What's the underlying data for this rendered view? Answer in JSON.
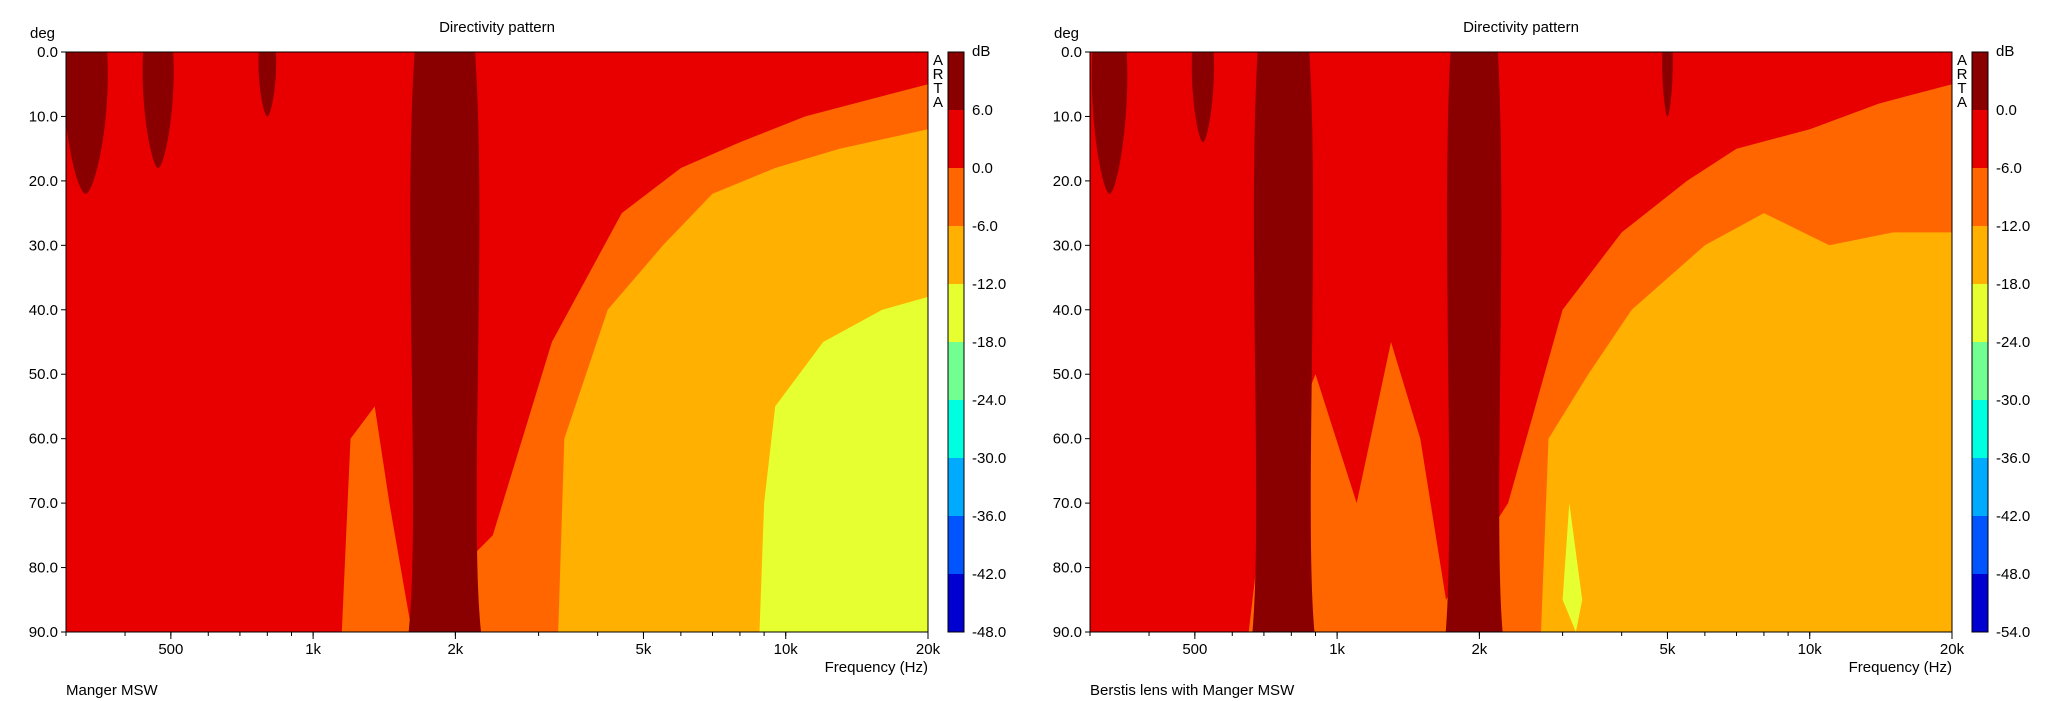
{
  "chart_data": [
    {
      "type": "heatmap",
      "title": "Directivity pattern",
      "ylabel": "deg",
      "xlabel": "Frequency (Hz)",
      "caption": "Manger MSW",
      "watermark": "ARTA",
      "colorbar_unit": "dB",
      "x_scale": "log",
      "xlim": [
        300,
        20000
      ],
      "ylim": [
        0,
        90
      ],
      "y_ticks": [
        "0.0",
        "10.0",
        "20.0",
        "30.0",
        "40.0",
        "50.0",
        "60.0",
        "70.0",
        "80.0",
        "90.0"
      ],
      "x_ticks": [
        {
          "value": 500,
          "label": "500"
        },
        {
          "value": 1000,
          "label": "1k"
        },
        {
          "value": 2000,
          "label": "2k"
        },
        {
          "value": 5000,
          "label": "5k"
        },
        {
          "value": 10000,
          "label": "10k"
        },
        {
          "value": 20000,
          "label": "20k"
        }
      ],
      "colorbar_labels": [
        "6.0",
        "0.0",
        "-6.0",
        "-12.0",
        "-18.0",
        "-24.0",
        "-30.0",
        "-36.0",
        "-42.0",
        "-48.0"
      ],
      "colorbar_colors": [
        "#8a0000",
        "#e80000",
        "#ff6600",
        "#ffb000",
        "#e6ff30",
        "#70ff90",
        "#00ffe0",
        "#00aaff",
        "#0055ff",
        "#0000d0"
      ],
      "beam_bands": [
        {
          "f": 330,
          "width": 0.05,
          "max_angle": 22
        },
        {
          "f": 470,
          "width": 0.035,
          "max_angle": 18
        },
        {
          "f": 800,
          "width": 0.02,
          "max_angle": 10
        },
        {
          "f": 1900,
          "width": 0.07,
          "max_angle": 90
        }
      ],
      "contour_bands": [
        {
          "level": -6.0,
          "points": [
            [
              1150,
              90
            ],
            [
              1200,
              60
            ],
            [
              1350,
              55
            ],
            [
              1450,
              70
            ],
            [
              1600,
              88
            ],
            [
              2400,
              75
            ],
            [
              3200,
              45
            ],
            [
              4500,
              25
            ],
            [
              6000,
              18
            ],
            [
              8000,
              14
            ],
            [
              11000,
              10
            ],
            [
              20000,
              5
            ],
            [
              20000,
              90
            ]
          ]
        },
        {
          "level": -12.0,
          "points": [
            [
              3300,
              90
            ],
            [
              3400,
              60
            ],
            [
              4200,
              40
            ],
            [
              5500,
              30
            ],
            [
              7000,
              22
            ],
            [
              9500,
              18
            ],
            [
              13000,
              15
            ],
            [
              20000,
              12
            ],
            [
              20000,
              90
            ]
          ]
        },
        {
          "level": -18.0,
          "points": [
            [
              8800,
              90
            ],
            [
              9000,
              70
            ],
            [
              9500,
              55
            ],
            [
              12000,
              45
            ],
            [
              16000,
              40
            ],
            [
              20000,
              38
            ],
            [
              20000,
              90
            ]
          ]
        }
      ]
    },
    {
      "type": "heatmap",
      "title": "Directivity pattern",
      "ylabel": "deg",
      "xlabel": "Frequency (Hz)",
      "caption": "Berstis lens with Manger MSW",
      "watermark": "ARTA",
      "colorbar_unit": "dB",
      "x_scale": "log",
      "xlim": [
        300,
        20000
      ],
      "ylim": [
        0,
        90
      ],
      "y_ticks": [
        "0.0",
        "10.0",
        "20.0",
        "30.0",
        "40.0",
        "50.0",
        "60.0",
        "70.0",
        "80.0",
        "90.0"
      ],
      "x_ticks": [
        {
          "value": 500,
          "label": "500"
        },
        {
          "value": 1000,
          "label": "1k"
        },
        {
          "value": 2000,
          "label": "2k"
        },
        {
          "value": 5000,
          "label": "5k"
        },
        {
          "value": 10000,
          "label": "10k"
        },
        {
          "value": 20000,
          "label": "20k"
        }
      ],
      "colorbar_labels": [
        "0.0",
        "-6.0",
        "-12.0",
        "-18.0",
        "-24.0",
        "-30.0",
        "-36.0",
        "-42.0",
        "-48.0",
        "-54.0"
      ],
      "colorbar_colors": [
        "#8a0000",
        "#e80000",
        "#ff6600",
        "#ffb000",
        "#e6ff30",
        "#70ff90",
        "#00ffe0",
        "#00aaff",
        "#0055ff",
        "#0000d0"
      ],
      "beam_bands": [
        {
          "f": 330,
          "width": 0.04,
          "max_angle": 22
        },
        {
          "f": 520,
          "width": 0.025,
          "max_angle": 14
        },
        {
          "f": 770,
          "width": 0.06,
          "max_angle": 90
        },
        {
          "f": 1950,
          "width": 0.055,
          "max_angle": 90
        },
        {
          "f": 5000,
          "width": 0.012,
          "max_angle": 10
        }
      ],
      "contour_bands": [
        {
          "level": -12.0,
          "points": [
            [
              650,
              90
            ],
            [
              700,
              70
            ],
            [
              900,
              50
            ],
            [
              1100,
              70
            ],
            [
              1300,
              45
            ],
            [
              1500,
              60
            ],
            [
              1700,
              85
            ],
            [
              2300,
              70
            ],
            [
              3000,
              40
            ],
            [
              4000,
              28
            ],
            [
              5500,
              20
            ],
            [
              7000,
              15
            ],
            [
              10000,
              12
            ],
            [
              14000,
              8
            ],
            [
              20000,
              5
            ],
            [
              20000,
              90
            ]
          ]
        },
        {
          "level": -18.0,
          "points": [
            [
              2700,
              90
            ],
            [
              2800,
              60
            ],
            [
              3400,
              50
            ],
            [
              4200,
              40
            ],
            [
              6000,
              30
            ],
            [
              8000,
              25
            ],
            [
              11000,
              30
            ],
            [
              15000,
              28
            ],
            [
              20000,
              28
            ],
            [
              20000,
              90
            ]
          ]
        },
        {
          "level": -24.0,
          "points": [
            [
              3000,
              85
            ],
            [
              3100,
              70
            ],
            [
              3300,
              85
            ],
            [
              3200,
              90
            ]
          ]
        }
      ]
    }
  ]
}
